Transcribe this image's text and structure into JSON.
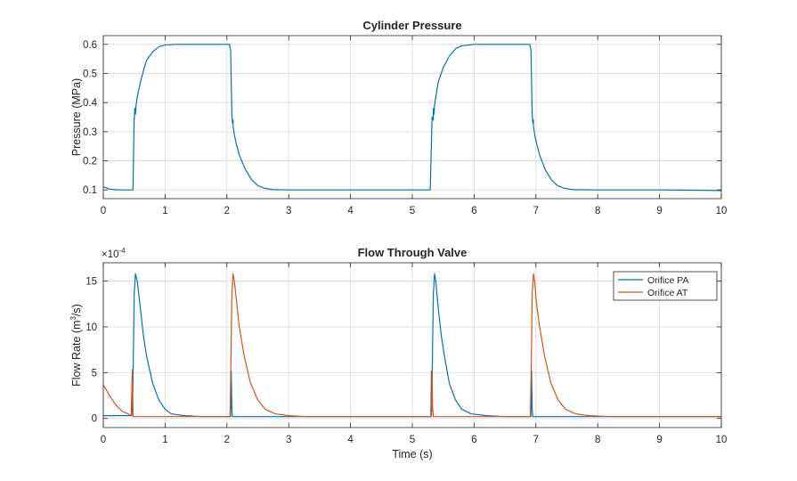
{
  "chart_data": [
    {
      "type": "line",
      "title": "Cylinder Pressure",
      "xlabel": "",
      "ylabel": "Pressure (MPa)",
      "xlim": [
        0,
        10
      ],
      "ylim": [
        0.07,
        0.63
      ],
      "xticks": [
        "0",
        "1",
        "2",
        "3",
        "4",
        "5",
        "6",
        "7",
        "8",
        "9",
        "10"
      ],
      "yticks": [
        "0.1",
        "0.2",
        "0.3",
        "0.4",
        "0.5",
        "0.6"
      ],
      "ytick_values": [
        0.1,
        0.2,
        0.3,
        0.4,
        0.5,
        0.6
      ],
      "grid": true,
      "series": [
        {
          "color": "#0072BD",
          "x": [
            0,
            0.05,
            0.1,
            0.2,
            0.3,
            0.45,
            0.48,
            0.5,
            0.5,
            0.51,
            0.52,
            0.53,
            0.55,
            0.6,
            0.65,
            0.7,
            0.8,
            0.9,
            1.0,
            1.2,
            1.5,
            2.04,
            2.06,
            2.08,
            2.09,
            2.1,
            2.1,
            2.12,
            2.15,
            2.2,
            2.3,
            2.4,
            2.5,
            2.6,
            2.75,
            3.0,
            4.0,
            5.0,
            5.29,
            5.32,
            5.34,
            5.34,
            5.35,
            5.36,
            5.38,
            5.42,
            5.5,
            5.6,
            5.7,
            5.8,
            6.0,
            6.3,
            6.9,
            6.92,
            6.94,
            6.95,
            6.96,
            6.96,
            6.98,
            7.01,
            7.06,
            7.15,
            7.25,
            7.35,
            7.45,
            7.6,
            8.0,
            9.0,
            10.0
          ],
          "y": [
            0.11,
            0.107,
            0.103,
            0.101,
            0.1,
            0.1,
            0.1,
            0.35,
            0.34,
            0.38,
            0.36,
            0.39,
            0.42,
            0.47,
            0.51,
            0.545,
            0.575,
            0.592,
            0.598,
            0.6,
            0.6,
            0.6,
            0.58,
            0.36,
            0.33,
            0.34,
            0.32,
            0.29,
            0.26,
            0.22,
            0.17,
            0.135,
            0.115,
            0.106,
            0.101,
            0.1,
            0.1,
            0.1,
            0.1,
            0.35,
            0.34,
            0.38,
            0.36,
            0.39,
            0.42,
            0.47,
            0.52,
            0.56,
            0.585,
            0.595,
            0.6,
            0.6,
            0.6,
            0.58,
            0.36,
            0.33,
            0.34,
            0.32,
            0.29,
            0.26,
            0.22,
            0.17,
            0.135,
            0.115,
            0.106,
            0.101,
            0.1,
            0.1,
            0.098
          ]
        }
      ]
    },
    {
      "type": "line",
      "title": "Flow Through Valve",
      "xlabel": "Time (s)",
      "ylabel": "Flow  Rate  (m",
      "ylabel_sup": "3",
      "ylabel_tail": "/s)",
      "exponent_base": "×10",
      "exponent_power": "-4",
      "xlim": [
        0,
        10
      ],
      "ylim": [
        -1,
        17
      ],
      "xticks": [
        "0",
        "1",
        "2",
        "3",
        "4",
        "5",
        "6",
        "7",
        "8",
        "9",
        "10"
      ],
      "yticks": [
        "0",
        "5",
        "10",
        "15"
      ],
      "ytick_values": [
        0,
        5,
        10,
        15
      ],
      "grid": true,
      "legend": "top-right",
      "series": [
        {
          "name": "Orifice PA",
          "color": "#0072BD",
          "x": [
            0,
            0.46,
            0.47,
            0.47,
            0.48,
            0.49,
            0.5,
            0.52,
            0.55,
            0.6,
            0.65,
            0.7,
            0.8,
            0.9,
            1.0,
            1.1,
            1.3,
            1.6,
            2.0,
            2.06,
            2.07,
            2.08,
            2.09,
            2.1,
            3.0,
            5.0,
            5.3,
            5.31,
            5.32,
            5.32,
            5.33,
            5.34,
            5.36,
            5.38,
            5.42,
            5.47,
            5.52,
            5.6,
            5.7,
            5.8,
            5.95,
            6.2,
            6.5,
            6.92,
            6.93,
            6.94,
            6.95,
            6.96,
            8.0,
            10.0
          ],
          "y": [
            0.3,
            0.3,
            5.2,
            0.8,
            4.0,
            8.5,
            13.5,
            15.8,
            15.0,
            12.0,
            9.0,
            6.8,
            3.8,
            2.0,
            1.0,
            0.5,
            0.3,
            0.2,
            0.2,
            0.2,
            5.2,
            1.0,
            0.2,
            0.2,
            0.2,
            0.2,
            0.2,
            5.2,
            0.8,
            4.0,
            8.5,
            13.5,
            15.8,
            15.0,
            12.0,
            9.0,
            6.8,
            3.8,
            2.0,
            1.0,
            0.5,
            0.3,
            0.2,
            0.2,
            5.2,
            1.0,
            0.2,
            0.2,
            0.2,
            0.2
          ]
        },
        {
          "name": "Orifice AT",
          "color": "#D95319",
          "x": [
            0,
            0.05,
            0.1,
            0.2,
            0.3,
            0.4,
            0.45,
            0.47,
            0.48,
            0.48,
            0.49,
            0.5,
            0.6,
            1.0,
            2.0,
            2.05,
            2.06,
            2.07,
            2.08,
            2.1,
            2.12,
            2.16,
            2.2,
            2.28,
            2.38,
            2.5,
            2.62,
            2.78,
            3.0,
            3.3,
            4.0,
            5.0,
            5.31,
            5.32,
            5.33,
            5.34,
            5.35,
            6.0,
            6.9,
            6.91,
            6.92,
            6.93,
            6.94,
            6.96,
            6.98,
            7.01,
            7.06,
            7.14,
            7.24,
            7.36,
            7.48,
            7.64,
            7.86,
            8.2,
            9.0,
            10.0
          ],
          "y": [
            3.6,
            3.1,
            2.5,
            1.5,
            0.8,
            0.5,
            0.3,
            5.3,
            1.0,
            0.2,
            0.2,
            0.2,
            0.2,
            0.2,
            0.2,
            0.2,
            4.0,
            8.5,
            13.5,
            15.8,
            15.0,
            12.5,
            10.0,
            6.8,
            3.9,
            2.0,
            1.0,
            0.5,
            0.3,
            0.2,
            0.2,
            0.2,
            0.2,
            5.3,
            1.0,
            0.2,
            0.2,
            0.2,
            0.2,
            0.2,
            4.0,
            8.5,
            13.5,
            15.8,
            15.0,
            12.5,
            10.0,
            6.8,
            3.9,
            2.0,
            1.0,
            0.5,
            0.3,
            0.2,
            0.2,
            0.2
          ]
        }
      ]
    }
  ]
}
